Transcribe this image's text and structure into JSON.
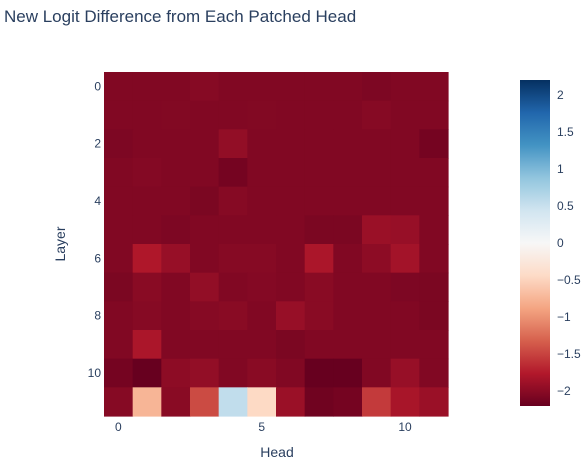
{
  "chart_data": {
    "type": "heatmap",
    "title": "New Logit Difference from Each Patched Head",
    "xlabel": "Head",
    "ylabel": "Layer",
    "x_ticks": [
      "0",
      "5",
      "10"
    ],
    "y_ticks": [
      "0",
      "2",
      "4",
      "6",
      "8",
      "10"
    ],
    "colorbar_ticks": [
      "2",
      "1.5",
      "1",
      "0.5",
      "0",
      "−0.5",
      "−1",
      "−1.5",
      "−2"
    ],
    "colorscale": "RdBu",
    "zmin": -2.2,
    "zmax": 2.2,
    "x": [
      0,
      1,
      2,
      3,
      4,
      5,
      6,
      7,
      8,
      9,
      10,
      11
    ],
    "y": [
      0,
      1,
      2,
      3,
      4,
      5,
      6,
      7,
      8,
      9,
      10,
      11
    ],
    "z": [
      [
        -2.05,
        -2.05,
        -2.05,
        -2.02,
        -2.05,
        -2.05,
        -2.05,
        -2.05,
        -2.05,
        -2.07,
        -2.05,
        -2.05
      ],
      [
        -2.05,
        -2.05,
        -2.04,
        -2.05,
        -2.05,
        -2.04,
        -2.05,
        -2.05,
        -2.05,
        -2.02,
        -2.05,
        -2.05
      ],
      [
        -2.07,
        -2.05,
        -2.05,
        -2.05,
        -1.95,
        -2.05,
        -2.05,
        -2.05,
        -2.05,
        -2.05,
        -2.05,
        -2.12
      ],
      [
        -2.05,
        -2.03,
        -2.05,
        -2.05,
        -2.12,
        -2.05,
        -2.05,
        -2.05,
        -2.05,
        -2.05,
        -2.05,
        -2.05
      ],
      [
        -2.05,
        -2.05,
        -2.05,
        -2.08,
        -2.02,
        -2.05,
        -2.05,
        -2.05,
        -2.05,
        -2.05,
        -2.05,
        -2.05
      ],
      [
        -2.05,
        -2.05,
        -2.07,
        -2.05,
        -2.05,
        -2.05,
        -2.05,
        -2.08,
        -2.08,
        -1.9,
        -1.92,
        -2.05
      ],
      [
        -2.05,
        -1.78,
        -1.92,
        -2.05,
        -2.02,
        -2.02,
        -2.05,
        -1.8,
        -2.05,
        -1.98,
        -1.85,
        -2.05
      ],
      [
        -2.08,
        -2.0,
        -2.05,
        -1.95,
        -2.05,
        -2.03,
        -2.05,
        -2.0,
        -2.05,
        -2.05,
        -2.07,
        -2.08
      ],
      [
        -2.05,
        -2.02,
        -2.05,
        -2.02,
        -2.0,
        -2.05,
        -1.92,
        -2.0,
        -2.05,
        -2.05,
        -2.05,
        -2.08
      ],
      [
        -2.05,
        -1.8,
        -2.05,
        -2.05,
        -2.05,
        -2.05,
        -2.08,
        -2.05,
        -2.05,
        -2.05,
        -2.05,
        -2.05
      ],
      [
        -2.12,
        -2.25,
        -1.98,
        -1.95,
        -2.05,
        -2.0,
        -2.05,
        -2.35,
        -2.6,
        -2.05,
        -1.92,
        -2.05
      ],
      [
        -2.02,
        -0.75,
        -2.0,
        -1.45,
        0.55,
        -0.45,
        -1.9,
        -2.15,
        -2.12,
        -1.55,
        -1.82,
        -1.9
      ]
    ]
  }
}
